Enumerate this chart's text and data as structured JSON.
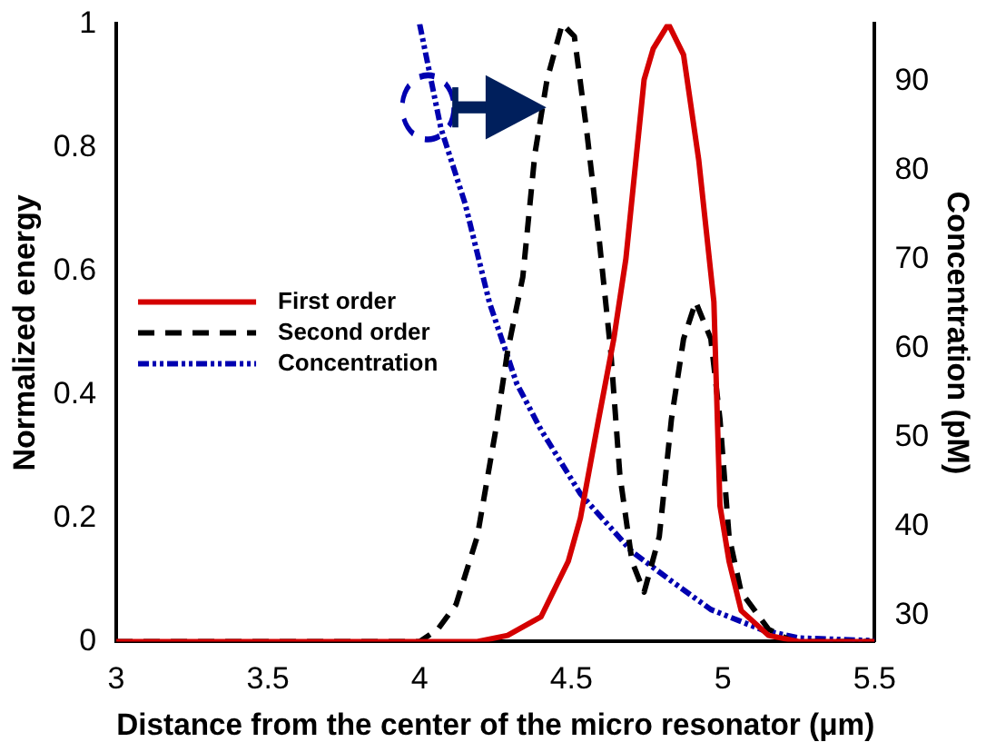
{
  "chart_data": {
    "type": "line",
    "xlabel": "Distance from the center of the micro resonator (μm)",
    "ylabel": "Normalized energy",
    "y2label": "Concentration (pM)",
    "xlim": [
      3,
      5.5
    ],
    "xticks": [
      3,
      3.5,
      4,
      4.5,
      5,
      5.5
    ],
    "ylim": [
      0,
      1
    ],
    "yticks": [
      0,
      0.2,
      0.4,
      0.6,
      0.8,
      1
    ],
    "y2lim": [
      27.1,
      96.5
    ],
    "y2ticks": [
      30,
      40,
      50,
      60,
      70,
      80,
      90
    ],
    "grid": false,
    "legend": "center left",
    "marker": "none",
    "series": [
      {
        "name": "First order",
        "color": "#d40000",
        "line_style": "solid",
        "x": [
          3,
          4.19,
          4.29,
          4.4,
          4.49,
          4.53,
          4.59,
          4.64,
          4.68,
          4.74,
          4.77,
          4.82,
          4.87,
          4.92,
          4.97,
          4.99,
          5.02,
          5.06,
          5.15,
          5.25,
          5.5
        ],
        "values": [
          0,
          0,
          0.01,
          0.04,
          0.13,
          0.2,
          0.36,
          0.49,
          0.62,
          0.91,
          0.96,
          1,
          0.95,
          0.78,
          0.55,
          0.22,
          0.13,
          0.05,
          0.01,
          0,
          0
        ]
      },
      {
        "name": "Second order",
        "color": "#000000",
        "line_style": "dashed",
        "x": [
          3,
          4,
          4.06,
          4.12,
          4.19,
          4.25,
          4.29,
          4.34,
          4.38,
          4.42,
          4.47,
          4.51,
          4.55,
          4.59,
          4.63,
          4.66,
          4.7,
          4.74,
          4.79,
          4.83,
          4.87,
          4.91,
          4.96,
          4.99,
          5.02,
          5.06,
          5.15,
          5.23,
          5.5
        ],
        "values": [
          0,
          0,
          0.02,
          0.06,
          0.17,
          0.34,
          0.47,
          0.59,
          0.79,
          0.91,
          1,
          0.98,
          0.83,
          0.66,
          0.47,
          0.27,
          0.13,
          0.08,
          0.17,
          0.36,
          0.49,
          0.55,
          0.49,
          0.36,
          0.17,
          0.08,
          0.02,
          0,
          0
        ]
      },
      {
        "name": "Concentration",
        "color": "#0000b0",
        "line_style": "dotted",
        "axis": "y2",
        "x": [
          4,
          4.07,
          4.15,
          4.23,
          4.32,
          4.4,
          4.53,
          4.7,
          4.83,
          4.96,
          5.13,
          5.25,
          5.5
        ],
        "values": [
          96.5,
          84.8,
          76.3,
          65.2,
          56.1,
          50.9,
          43.7,
          37.2,
          33.9,
          30.7,
          28.4,
          27.5,
          27.2
        ]
      }
    ]
  }
}
